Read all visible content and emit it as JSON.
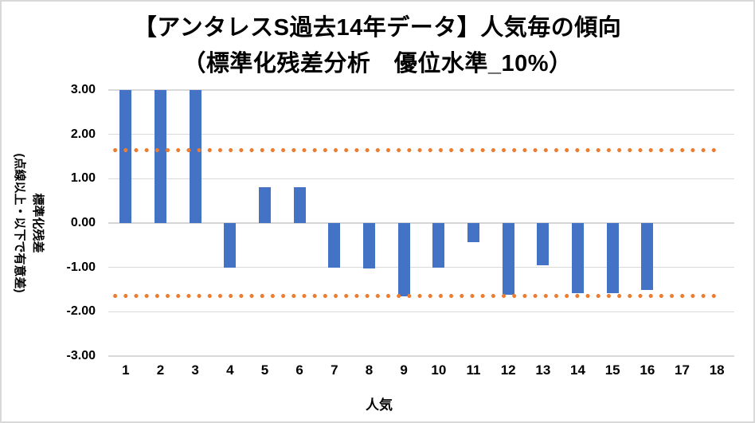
{
  "chart_data": {
    "type": "bar",
    "title": "【アンタレスS過去14年データ】人気毎の傾向",
    "subtitle": "（標準化残差分析　優位水準_10%）",
    "xlabel": "人気",
    "ylabel": "標準化残差",
    "ylabel_note": "(点線以上・以下で有意差)",
    "categories": [
      "1",
      "2",
      "3",
      "4",
      "5",
      "6",
      "7",
      "8",
      "9",
      "10",
      "11",
      "12",
      "13",
      "14",
      "15",
      "16",
      "17",
      "18"
    ],
    "values": [
      3.0,
      3.0,
      3.0,
      -1.0,
      0.8,
      0.8,
      -1.0,
      -1.03,
      -1.66,
      -1.0,
      -0.43,
      -1.62,
      -0.95,
      -1.58,
      -1.58,
      -1.51,
      null,
      null
    ],
    "ylim": [
      -3,
      3
    ],
    "y_ticks": [
      3,
      2,
      1,
      0,
      -1,
      -2,
      -3
    ],
    "y_tick_format": "0.00",
    "significance_lines": [
      1.645,
      -1.645
    ],
    "grid": true,
    "legend": "none",
    "colors": {
      "bar": "#4472C4",
      "significance_dotted": "#ED7D31",
      "gridline": "#D9D9D9",
      "text": "#000000",
      "border": "#D9D9D9"
    }
  }
}
